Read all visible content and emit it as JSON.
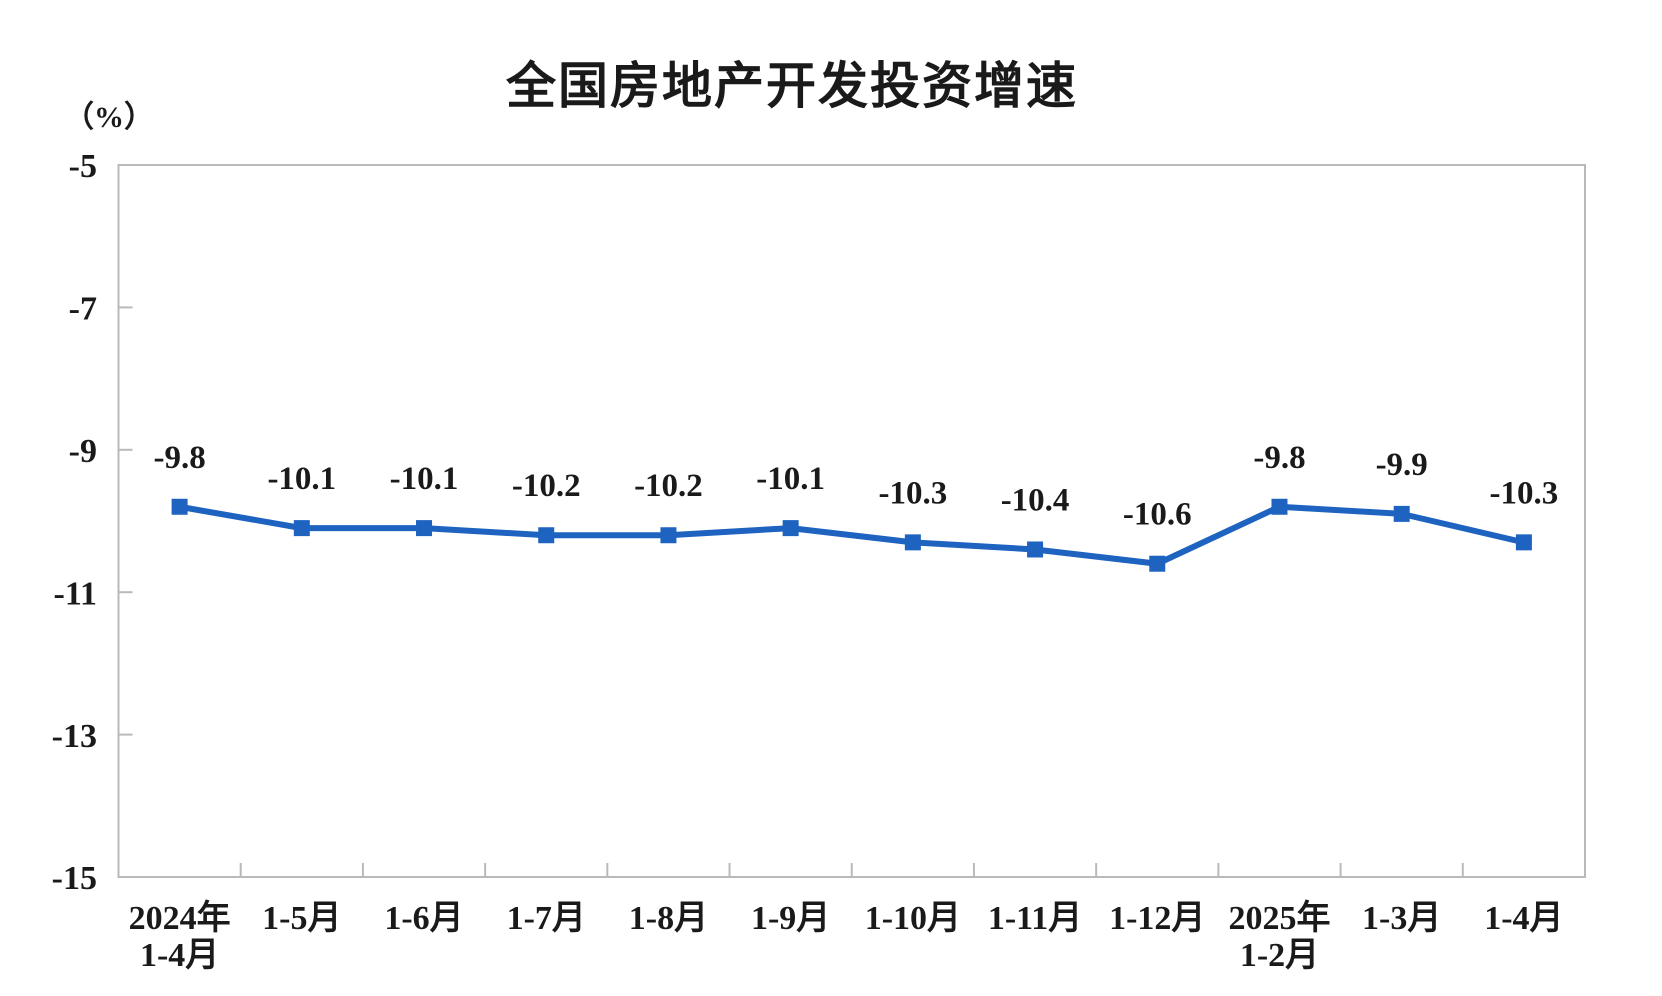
{
  "chart_data": {
    "type": "line",
    "title": "全国房地产开发投资增速",
    "unit_label": "（%）",
    "categories": [
      "2024年\n1-4月",
      "1-5月",
      "1-6月",
      "1-7月",
      "1-8月",
      "1-9月",
      "1-10月",
      "1-11月",
      "1-12月",
      "2025年\n1-2月",
      "1-3月",
      "1-4月"
    ],
    "values": [
      -9.8,
      -10.1,
      -10.1,
      -10.2,
      -10.2,
      -10.1,
      -10.3,
      -10.4,
      -10.6,
      -9.8,
      -9.9,
      -10.3
    ],
    "point_labels": [
      "-9.8",
      "-10.1",
      "-10.1",
      "-10.2",
      "-10.2",
      "-10.1",
      "-10.3",
      "-10.4",
      "-10.6",
      "-9.8",
      "-9.9",
      "-10.3"
    ],
    "xlabel": "",
    "ylabel": "（%）",
    "y_ticks": [
      -5,
      -7,
      -9,
      -11,
      -13,
      -15
    ],
    "ylim": [
      -15,
      -5
    ],
    "grid": false,
    "legend": "none",
    "marker": "square",
    "colors": {
      "series": "#1e63c0",
      "axis": "#b9b9b9",
      "text": "#1a1a1a"
    }
  }
}
